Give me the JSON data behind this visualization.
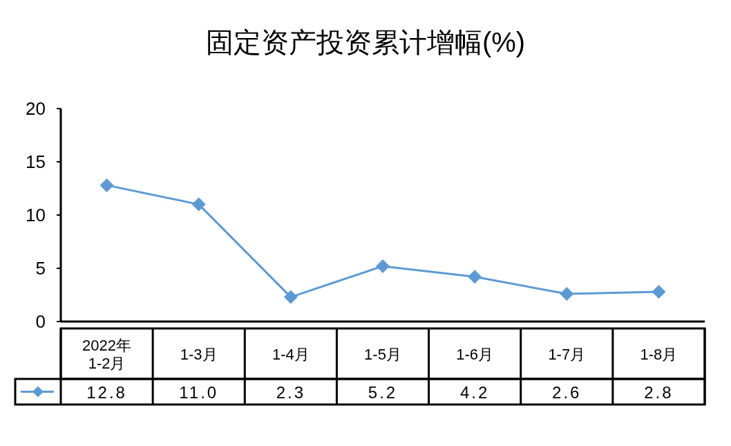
{
  "chart_data": {
    "type": "line",
    "title": "固定资产投资累计增幅(%)",
    "categories": [
      "2022年\n1-2月",
      "1-3月",
      "1-4月",
      "1-5月",
      "1-6月",
      "1-7月",
      "1-8月"
    ],
    "series": [
      {
        "color": "#5b9bd5",
        "values": [
          12.8,
          11.0,
          2.3,
          5.2,
          4.2,
          2.6,
          2.8
        ],
        "value_labels": [
          "12.8",
          "11.0",
          "2.3",
          "5.2",
          "4.2",
          "2.6",
          "2.8"
        ]
      }
    ],
    "ylim": [
      0,
      20
    ],
    "yticks": [
      0,
      5,
      10,
      15,
      20
    ],
    "marker": "diamond",
    "line_style": "solid",
    "data_labels": true,
    "grid": false
  }
}
